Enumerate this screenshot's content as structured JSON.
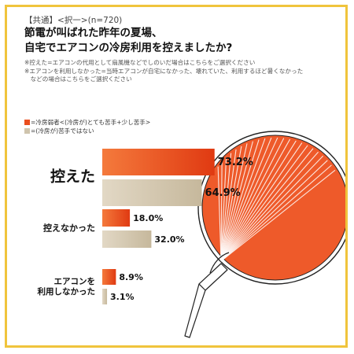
{
  "header": {
    "survey_tag": "【共通】<択一>(n=720)",
    "title_line1": "節電が叫ばれた昨年の夏場、",
    "title_line2": "自宅でエアコンの冷房利用を控えましたか?"
  },
  "notes": [
    "※控えた=エアコンの代用として扇風機などでしのいだ場合はこちらをご選択ください",
    "※エアコンを利用しなかった=当時エアコンが自宅になかった、壊れていた、利用するほど暑くなかった",
    "　などの場合はこちらをご選択ください"
  ],
  "colors": {
    "series_1": "#ea4e1e",
    "series_2": "#cfc4ad",
    "fan": "#ee5a2a",
    "border": "#f0c43c"
  },
  "chart_data": {
    "type": "bar",
    "orientation": "horizontal",
    "categories": [
      "控えた",
      "控えなかった",
      "エアコンを\n利用しなかった"
    ],
    "series": [
      {
        "name": "=冷房弱者<(冷房が)とても苦手+少し苦手>",
        "values": [
          73.2,
          18.0,
          8.9
        ],
        "labels": [
          "73.2%",
          "18.0%",
          "8.9%"
        ]
      },
      {
        "name": "=(冷房が)苦手ではない",
        "values": [
          64.9,
          32.0,
          3.1
        ],
        "labels": [
          "64.9%",
          "32.0%",
          "3.1%"
        ]
      }
    ],
    "unit": "%",
    "legend_position": "top-left"
  },
  "decoration": {
    "illustration": "uchiwa-fan-icon"
  }
}
